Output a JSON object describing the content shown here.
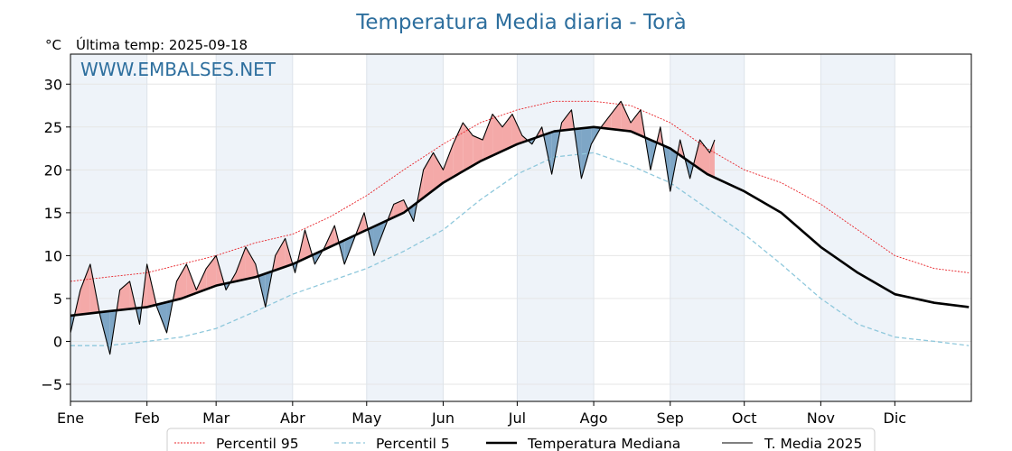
{
  "chart_data": {
    "type": "line",
    "title": "Temperatura Media diaria - Torà",
    "unit_label": "°C",
    "last_temp_label": "Última temp: 2025-09-18",
    "watermark": "WWW.EMBALSES.NET",
    "ylim": [
      -7,
      33.5
    ],
    "yticks": [
      -5,
      0,
      5,
      10,
      15,
      20,
      25,
      30
    ],
    "months": [
      "Ene",
      "Feb",
      "Mar",
      "Abr",
      "May",
      "Jun",
      "Jul",
      "Ago",
      "Sep",
      "Oct",
      "Nov",
      "Dic"
    ],
    "month_start_day": [
      0,
      31,
      59,
      90,
      120,
      151,
      181,
      212,
      243,
      273,
      304,
      334
    ],
    "days_in_year": 365,
    "grid": true,
    "legend_position": "bottom",
    "colors": {
      "p95": "#e8242a",
      "p5": "#8fc8dc",
      "median": "#000000",
      "current": "#000000",
      "above_fill": "#f4a9a8",
      "below_fill": "#7ea6c6",
      "band": "#eef3f9"
    },
    "series": [
      {
        "key": "p95",
        "name": "Percentil 95",
        "x": [
          0,
          15,
          31,
          45,
          59,
          75,
          90,
          105,
          120,
          135,
          151,
          166,
          181,
          196,
          212,
          227,
          243,
          258,
          273,
          288,
          304,
          319,
          334,
          350,
          364
        ],
        "y": [
          7,
          7.5,
          8,
          9,
          10,
          11.5,
          12.5,
          14.5,
          17,
          20,
          23,
          25.5,
          27,
          28,
          28,
          27.5,
          25.5,
          22.5,
          20,
          18.5,
          16,
          13,
          10,
          8.5,
          8
        ]
      },
      {
        "key": "p5",
        "name": "Percentil 5",
        "x": [
          0,
          15,
          31,
          45,
          59,
          75,
          90,
          105,
          120,
          135,
          151,
          166,
          181,
          196,
          212,
          227,
          243,
          258,
          273,
          288,
          304,
          319,
          334,
          350,
          364
        ],
        "y": [
          -0.5,
          -0.5,
          0,
          0.5,
          1.5,
          3.5,
          5.5,
          7,
          8.5,
          10.5,
          13,
          16.5,
          19.5,
          21.5,
          22,
          20.5,
          18.5,
          15.5,
          12.5,
          9,
          5,
          2,
          0.5,
          0,
          -0.5
        ]
      },
      {
        "key": "median",
        "name": "Temperatura Mediana",
        "x": [
          0,
          15,
          31,
          45,
          59,
          75,
          90,
          105,
          120,
          135,
          151,
          166,
          181,
          196,
          212,
          227,
          243,
          258,
          273,
          288,
          304,
          319,
          334,
          350,
          364
        ],
        "y": [
          3,
          3.5,
          4,
          5,
          6.5,
          7.5,
          9,
          11,
          13,
          15,
          18.5,
          21,
          23,
          24.5,
          25,
          24.5,
          22.5,
          19.5,
          17.5,
          15,
          11,
          8,
          5.5,
          4.5,
          4
        ]
      },
      {
        "key": "current",
        "name": "T. Media 2025",
        "x": [
          0,
          4,
          8,
          12,
          16,
          20,
          24,
          28,
          31,
          35,
          39,
          43,
          47,
          51,
          55,
          59,
          63,
          67,
          71,
          75,
          79,
          83,
          87,
          91,
          95,
          99,
          103,
          107,
          111,
          115,
          119,
          123,
          127,
          131,
          135,
          139,
          143,
          147,
          151,
          155,
          159,
          163,
          167,
          171,
          175,
          179,
          183,
          187,
          191,
          195,
          199,
          203,
          207,
          211,
          215,
          219,
          223,
          227,
          231,
          235,
          239,
          243,
          247,
          251,
          255,
          259,
          261
        ],
        "y": [
          1,
          6,
          9,
          3,
          -1.5,
          6,
          7,
          2,
          9,
          4,
          1,
          7,
          9,
          6,
          8.5,
          10,
          6,
          8,
          11,
          9,
          4,
          10,
          12,
          8,
          13,
          9,
          11,
          13.5,
          9,
          12,
          15,
          10,
          13,
          16,
          16.5,
          14,
          20,
          22,
          20,
          23,
          25.5,
          24,
          23.5,
          26.5,
          25,
          26.5,
          24,
          23,
          25,
          19.5,
          25.5,
          27,
          19,
          23,
          25,
          26.5,
          28,
          25.5,
          27,
          20,
          25,
          17.5,
          23.5,
          19,
          23.5,
          22,
          23.5
        ]
      }
    ]
  }
}
